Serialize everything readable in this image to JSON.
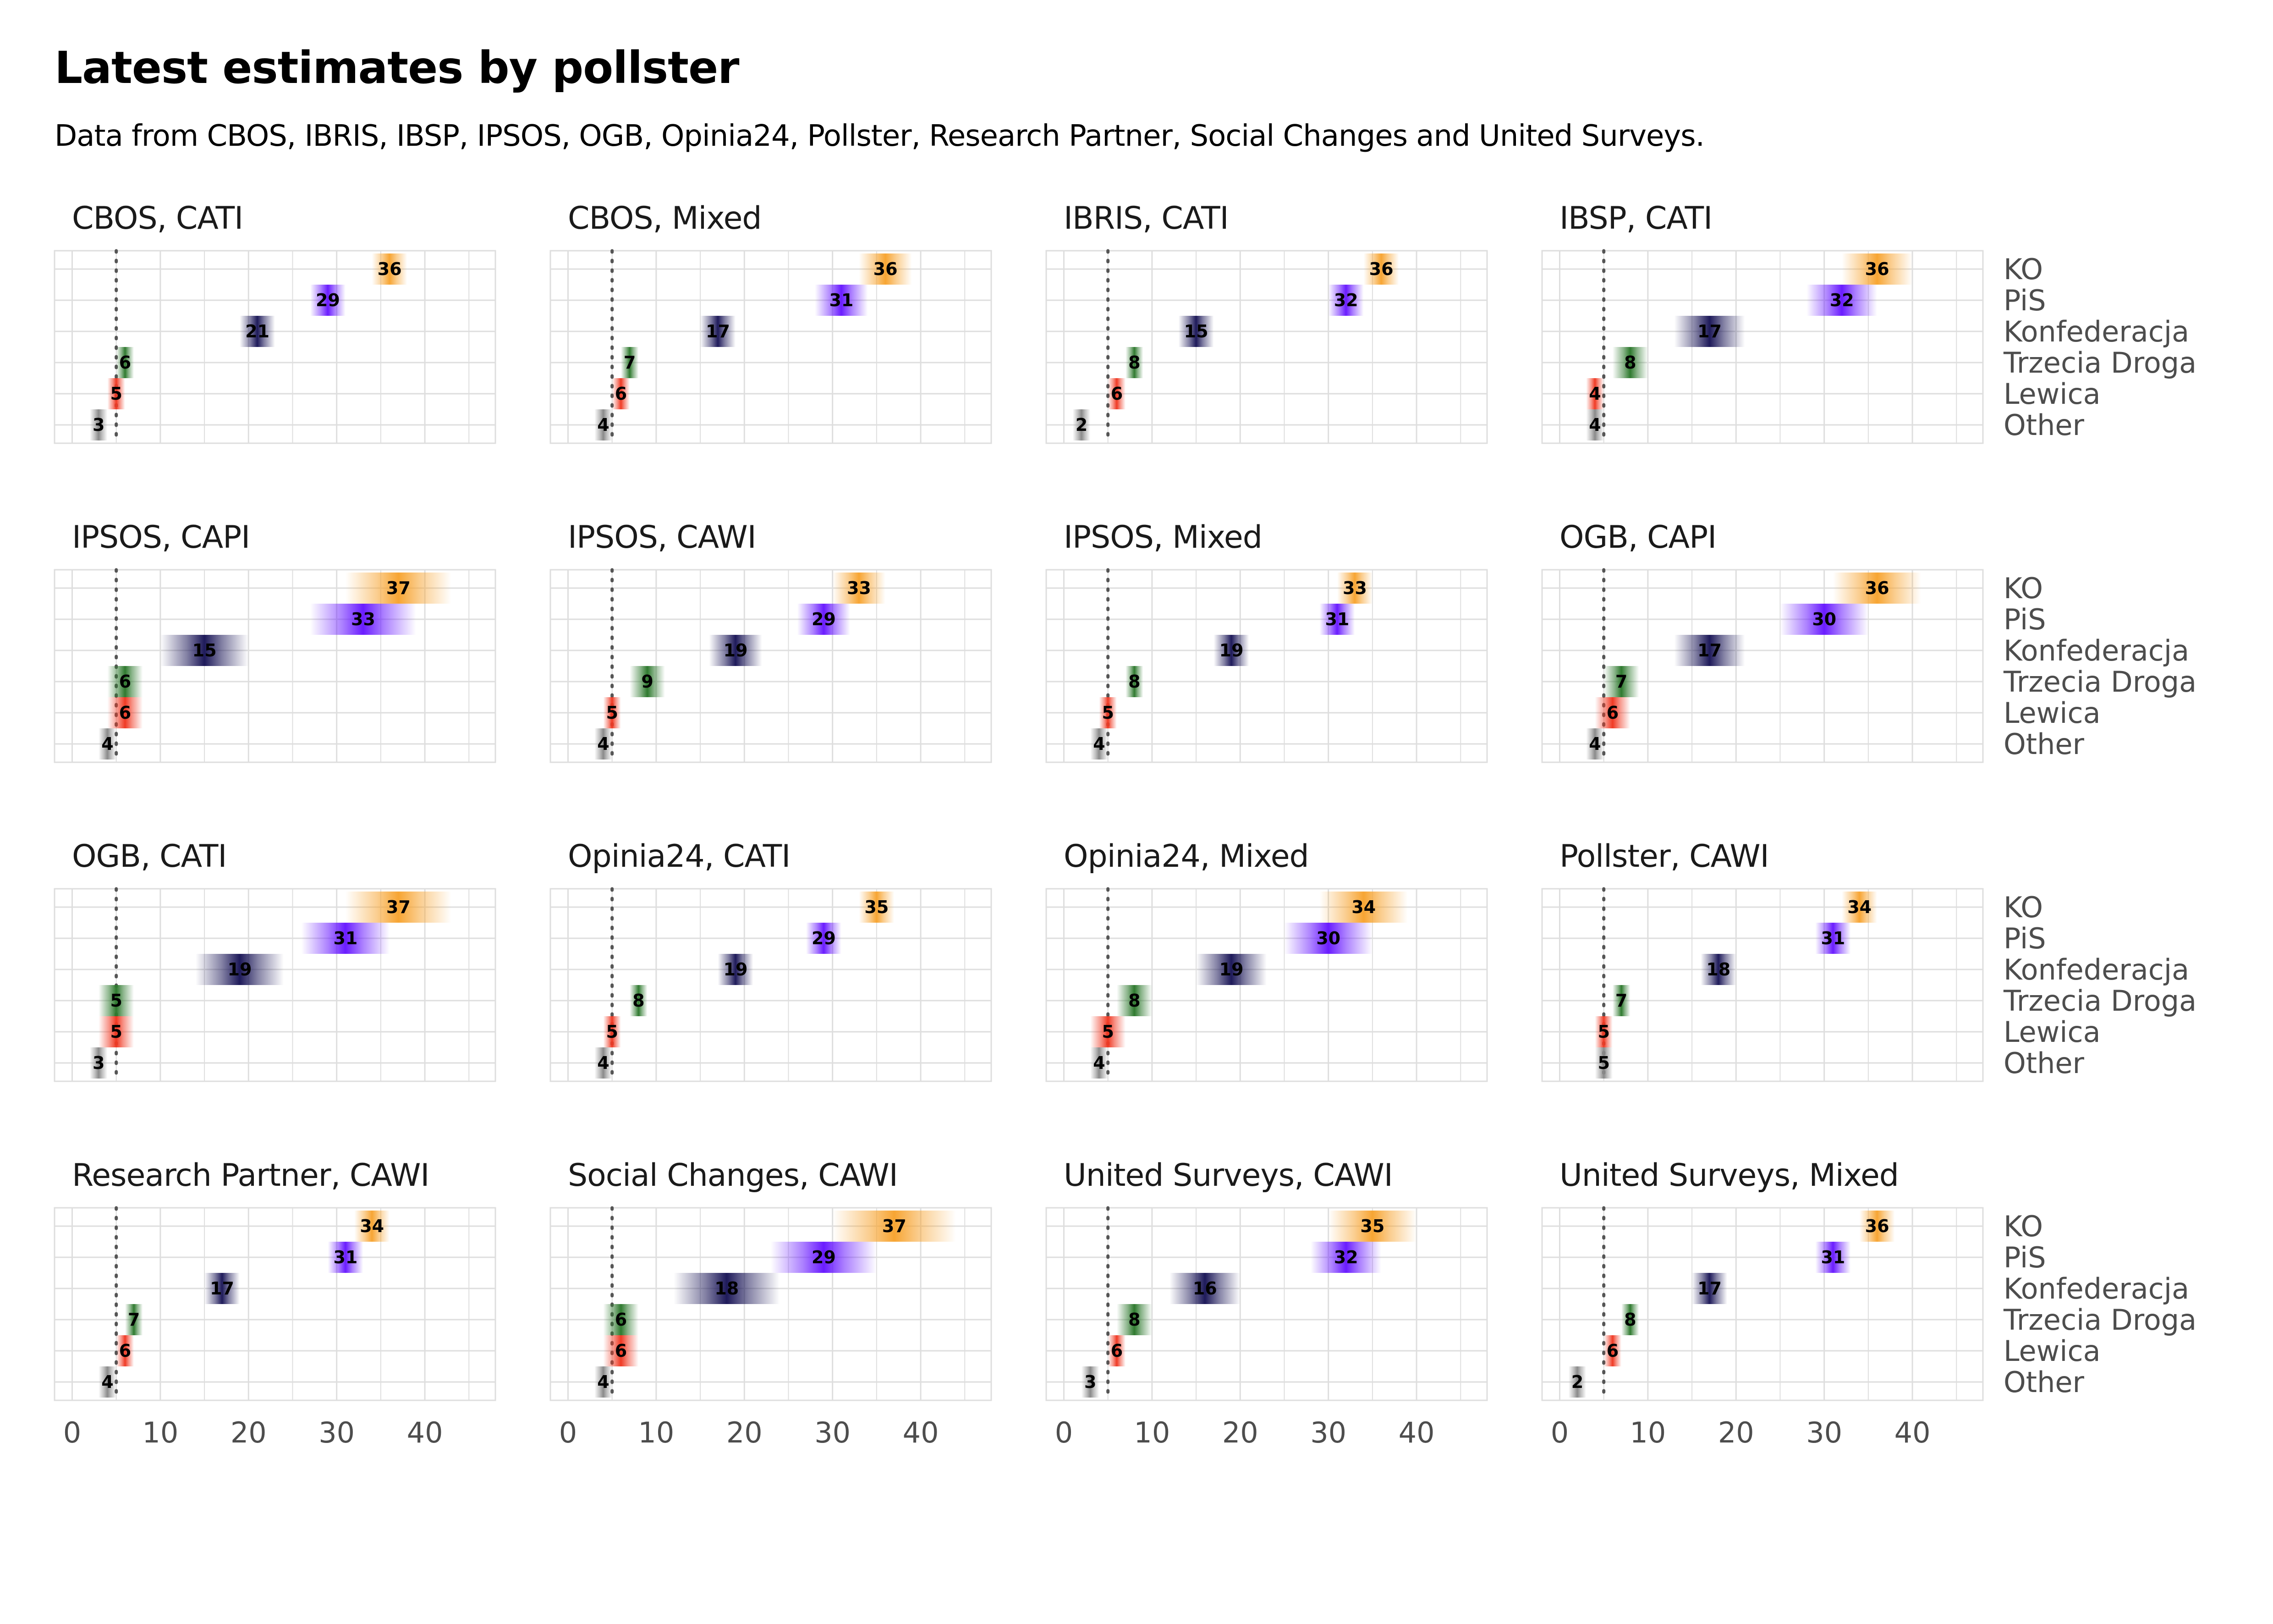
{
  "header": {
    "title": "Latest estimates by pollster",
    "subtitle": "Data from CBOS, IBRIS, IBSP, IPSOS, OGB, Opinia24, Pollster, Research Partner, Social Changes and United Surveys."
  },
  "colors": {
    "KO": "#f7a533",
    "PiS": "#6a1cff",
    "Konfederacja": "#1e1a5a",
    "Trzecia Droga": "#2f7a2f",
    "Lewica": "#f03a24",
    "Other": "#8a8a8a",
    "grid": "#dedede",
    "threshold": "#555555"
  },
  "chart_data": {
    "type": "bar",
    "parties": [
      "KO",
      "PiS",
      "Konfederacja",
      "Trzecia Droga",
      "Lewica",
      "Other"
    ],
    "xticks": [
      0,
      10,
      20,
      30,
      40
    ],
    "xlim": [
      -2,
      48
    ],
    "threshold": 5,
    "grid": true,
    "panels": [
      {
        "title": "CBOS, CATI",
        "values": [
          36,
          29,
          21,
          6,
          5,
          3
        ],
        "spread": [
          2,
          2,
          2,
          1,
          1,
          1
        ]
      },
      {
        "title": "CBOS, Mixed",
        "values": [
          36,
          31,
          17,
          7,
          6,
          4
        ],
        "spread": [
          3,
          3,
          2,
          1,
          1,
          1
        ]
      },
      {
        "title": "IBRIS, CATI",
        "values": [
          36,
          32,
          15,
          8,
          6,
          2
        ],
        "spread": [
          2,
          2,
          2,
          1,
          1,
          1
        ]
      },
      {
        "title": "IBSP, CATI",
        "values": [
          36,
          32,
          17,
          8,
          4,
          4
        ],
        "spread": [
          4,
          4,
          4,
          2,
          1,
          1
        ]
      },
      {
        "title": "IPSOS, CAPI",
        "values": [
          37,
          33,
          15,
          6,
          6,
          4
        ],
        "spread": [
          6,
          6,
          5,
          2,
          2,
          1
        ]
      },
      {
        "title": "IPSOS, CAWI",
        "values": [
          33,
          29,
          19,
          9,
          5,
          4
        ],
        "spread": [
          3,
          3,
          3,
          2,
          1,
          1
        ]
      },
      {
        "title": "IPSOS, Mixed",
        "values": [
          33,
          31,
          19,
          8,
          5,
          4
        ],
        "spread": [
          2,
          2,
          2,
          1,
          1,
          1
        ]
      },
      {
        "title": "OGB, CAPI",
        "values": [
          36,
          30,
          17,
          7,
          6,
          4
        ],
        "spread": [
          5,
          5,
          4,
          2,
          2,
          1
        ]
      },
      {
        "title": "OGB, CATI",
        "values": [
          37,
          31,
          19,
          5,
          5,
          3
        ],
        "spread": [
          6,
          5,
          5,
          2,
          2,
          1
        ]
      },
      {
        "title": "Opinia24, CATI",
        "values": [
          35,
          29,
          19,
          8,
          5,
          4
        ],
        "spread": [
          2,
          2,
          2,
          1,
          1,
          1
        ]
      },
      {
        "title": "Opinia24, Mixed",
        "values": [
          34,
          30,
          19,
          8,
          5,
          4
        ],
        "spread": [
          5,
          5,
          4,
          2,
          2,
          1
        ]
      },
      {
        "title": "Pollster, CAWI",
        "values": [
          34,
          31,
          18,
          7,
          5,
          5
        ],
        "spread": [
          2,
          2,
          2,
          1,
          1,
          1
        ]
      },
      {
        "title": "Research Partner, CAWI",
        "values": [
          34,
          31,
          17,
          7,
          6,
          4
        ],
        "spread": [
          2,
          2,
          2,
          1,
          1,
          1
        ]
      },
      {
        "title": "Social Changes, CAWI",
        "values": [
          37,
          29,
          18,
          6,
          6,
          4
        ],
        "spread": [
          7,
          6,
          6,
          2,
          2,
          1
        ]
      },
      {
        "title": "United Surveys, CAWI",
        "values": [
          35,
          32,
          16,
          8,
          6,
          3
        ],
        "spread": [
          5,
          4,
          4,
          2,
          1,
          1
        ]
      },
      {
        "title": "United Surveys, Mixed",
        "values": [
          36,
          31,
          17,
          8,
          6,
          2
        ],
        "spread": [
          2,
          2,
          2,
          1,
          1,
          1
        ]
      }
    ]
  }
}
